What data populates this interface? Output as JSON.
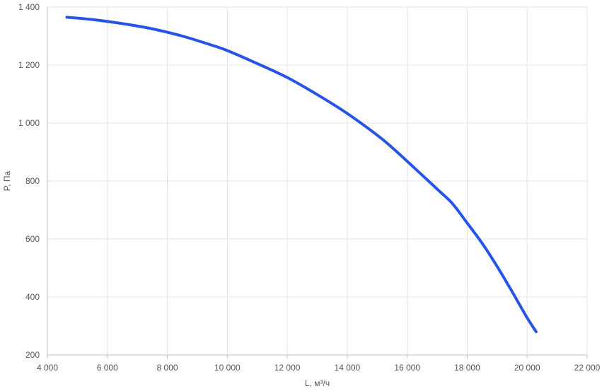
{
  "chart_data": {
    "type": "line",
    "title": "",
    "xlabel": "L, м³/ч",
    "ylabel": "P, Па",
    "xlim": [
      4000,
      22000
    ],
    "ylim": [
      200,
      1400
    ],
    "grid": true,
    "x_ticks": [
      4000,
      6000,
      8000,
      10000,
      12000,
      14000,
      16000,
      18000,
      20000,
      22000
    ],
    "x_tick_labels": [
      "4 000",
      "6 000",
      "8 000",
      "10 000",
      "12 000",
      "14 000",
      "16 000",
      "18 000",
      "20 000",
      "22 000"
    ],
    "y_ticks": [
      200,
      400,
      600,
      800,
      1000,
      1200,
      1400
    ],
    "y_tick_labels": [
      "200",
      "400",
      "600",
      "800",
      "1 000",
      "1 200",
      "1 400"
    ],
    "series": [
      {
        "color": "#2653e8",
        "x": [
          4650,
          5500,
          6500,
          7500,
          8500,
          9500,
          10000,
          11000,
          12000,
          13000,
          14000,
          15000,
          15500,
          16000,
          17000,
          17500,
          18000,
          18500,
          19000,
          19500,
          20000,
          20300
        ],
        "y": [
          1365,
          1357,
          1343,
          1325,
          1300,
          1268,
          1250,
          1205,
          1157,
          1098,
          1033,
          958,
          915,
          868,
          772,
          723,
          655,
          585,
          505,
          418,
          328,
          280
        ]
      }
    ]
  }
}
